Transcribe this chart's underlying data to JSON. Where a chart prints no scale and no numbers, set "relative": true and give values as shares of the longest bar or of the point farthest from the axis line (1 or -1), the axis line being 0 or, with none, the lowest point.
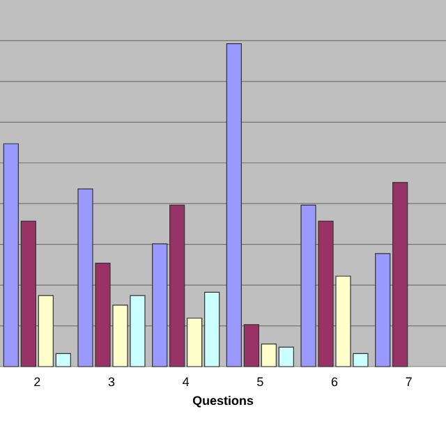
{
  "chart_data": {
    "type": "bar",
    "xlabel": "Questions",
    "relative": true,
    "grid": "y",
    "categories": [
      "2",
      "3",
      "4",
      "5",
      "6",
      "7"
    ],
    "series": [
      {
        "color": "#9999ff",
        "values": [
          0.69,
          0.55,
          0.38,
          1,
          0.5,
          0.35
        ]
      },
      {
        "color": "#993366",
        "values": [
          0.45,
          0.32,
          0.5,
          0.13,
          0.45,
          0.57
        ]
      },
      {
        "color": "#ffffcc",
        "values": [
          0.22,
          0.19,
          0.15,
          0.07,
          0.28,
          null
        ]
      },
      {
        "color": "#ccffff",
        "values": [
          0.04,
          0.22,
          0.23,
          0.06,
          0.04,
          null
        ]
      }
    ]
  }
}
